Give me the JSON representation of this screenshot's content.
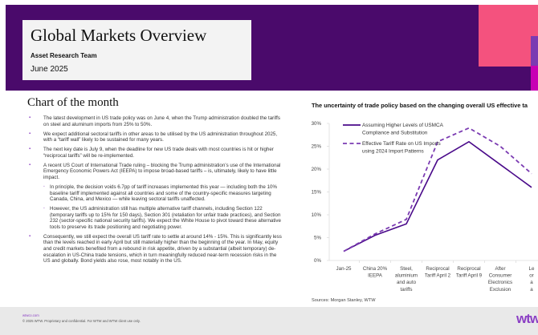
{
  "page": {
    "number": "1"
  },
  "header": {
    "title": "Global Markets Overview",
    "team": "Asset Research Team",
    "date": "June 2025",
    "colors": {
      "band": "#4a0a6b",
      "box": "#f3f3f3",
      "pink": "#f4527e",
      "purple": "#7b3bb2",
      "magenta": "#c800b4"
    }
  },
  "section": {
    "title": "Chart of the month",
    "bullets": [
      {
        "level": 1,
        "text": "The latest development in US trade policy was on June 4, when the Trump administration doubled the tariffs on steel and aluminum imports from 25% to 50%."
      },
      {
        "level": 1,
        "text": "We expect additional sectoral tariffs in other areas to be utilised by the US administration throughout 2025, with a “tariff wall” likely to be sustained for many years."
      },
      {
        "level": 1,
        "text": "The next key date is July 9, when the deadline for new US trade deals with most countries is hit or higher “reciprocal tariffs” will be re-implemented."
      },
      {
        "level": 1,
        "text": "A recent US Court of International Trade ruling – blocking the Trump administration’s use of the International Emergency Economic Powers Act (IEEPA) to impose broad-based tariffs – is, ultimately, likely to have little impact."
      },
      {
        "level": 2,
        "text": "In principle, the decision voids 6.7pp of tariff increases implemented this year — including both the 10% baseline tariff implemented against all countries and some of the country-specific measures targeting Canada, China, and Mexico — while leaving sectoral tariffs unaffected."
      },
      {
        "level": 2,
        "text": "However, the US administration still has multiple alternative tariff channels, including Section 122 (temporary tariffs up to 15% for 150 days), Section 301 (retaliation for unfair trade practices), and Section 232 (sector-specific national security tariffs). We expect the White House to pivot toward these alternative tools to preserve its trade positioning and negotiating power."
      },
      {
        "level": 1,
        "text": "Consequently, we still expect the overall US tariff rate to settle at around 14% - 15%. This is significantly less than the levels reached in early April but still materially higher than the beginning of the year. In May, equity and credit markets benefited from a rebound in risk appetite, driven by a substantial (albeit temporary) de-escalation in US-China trade tensions, which in turn meaningfully reduced near-term recession risks in the US and globally. Bond yields also rose, most notably in the US."
      }
    ],
    "bullet_glyph": "▪"
  },
  "chart_data": {
    "type": "line",
    "title": "The uncertainty of trade policy based on the changing overall US effective ta",
    "xlabel": "",
    "ylabel": "",
    "ylim": [
      0,
      30
    ],
    "yticks": [
      "0%",
      "5%",
      "10%",
      "15%",
      "20%",
      "25%",
      "30%"
    ],
    "categories": [
      [
        "Jan-25"
      ],
      [
        "China 20%",
        "IEEPA"
      ],
      [
        "Steel,",
        "aluminium",
        "and auto",
        "tariffs"
      ],
      [
        "Reciprocal",
        "Tariff April 2"
      ],
      [
        "Reciprocal",
        "Tariff April 9"
      ],
      [
        "After",
        "Consumer",
        "Electronics",
        "Exclusion"
      ],
      [
        "Le",
        "or",
        "a",
        "a"
      ]
    ],
    "series": [
      {
        "name": "Assuming Higher Levels of USMCA Compliance and Substitution",
        "style": "solid",
        "color": "#4a0a8a",
        "values": [
          2,
          5.5,
          8,
          22,
          26,
          21,
          16
        ]
      },
      {
        "name": "Effective Tariff Rate on US Imports using 2024 Import Patterns",
        "style": "dashed",
        "color": "#7b3bb2",
        "values": [
          2,
          5.8,
          9,
          26,
          29,
          25,
          19
        ]
      }
    ],
    "legend": [
      [
        "Assuming Higher Levels of USMCA",
        "Compliance and Substitution"
      ],
      [
        "Effective Tariff Rate on US Imports",
        "using 2024 Import Patterns"
      ]
    ],
    "legend_position": "top-left",
    "grid": false,
    "source": "Sources: Morgan Stanley, WTW"
  },
  "footer": {
    "link": "wtwco.com",
    "copyright": "© 2025 WTW. Proprietary and confidential. For WTW and WTW client use only.",
    "logo": "wtw"
  }
}
